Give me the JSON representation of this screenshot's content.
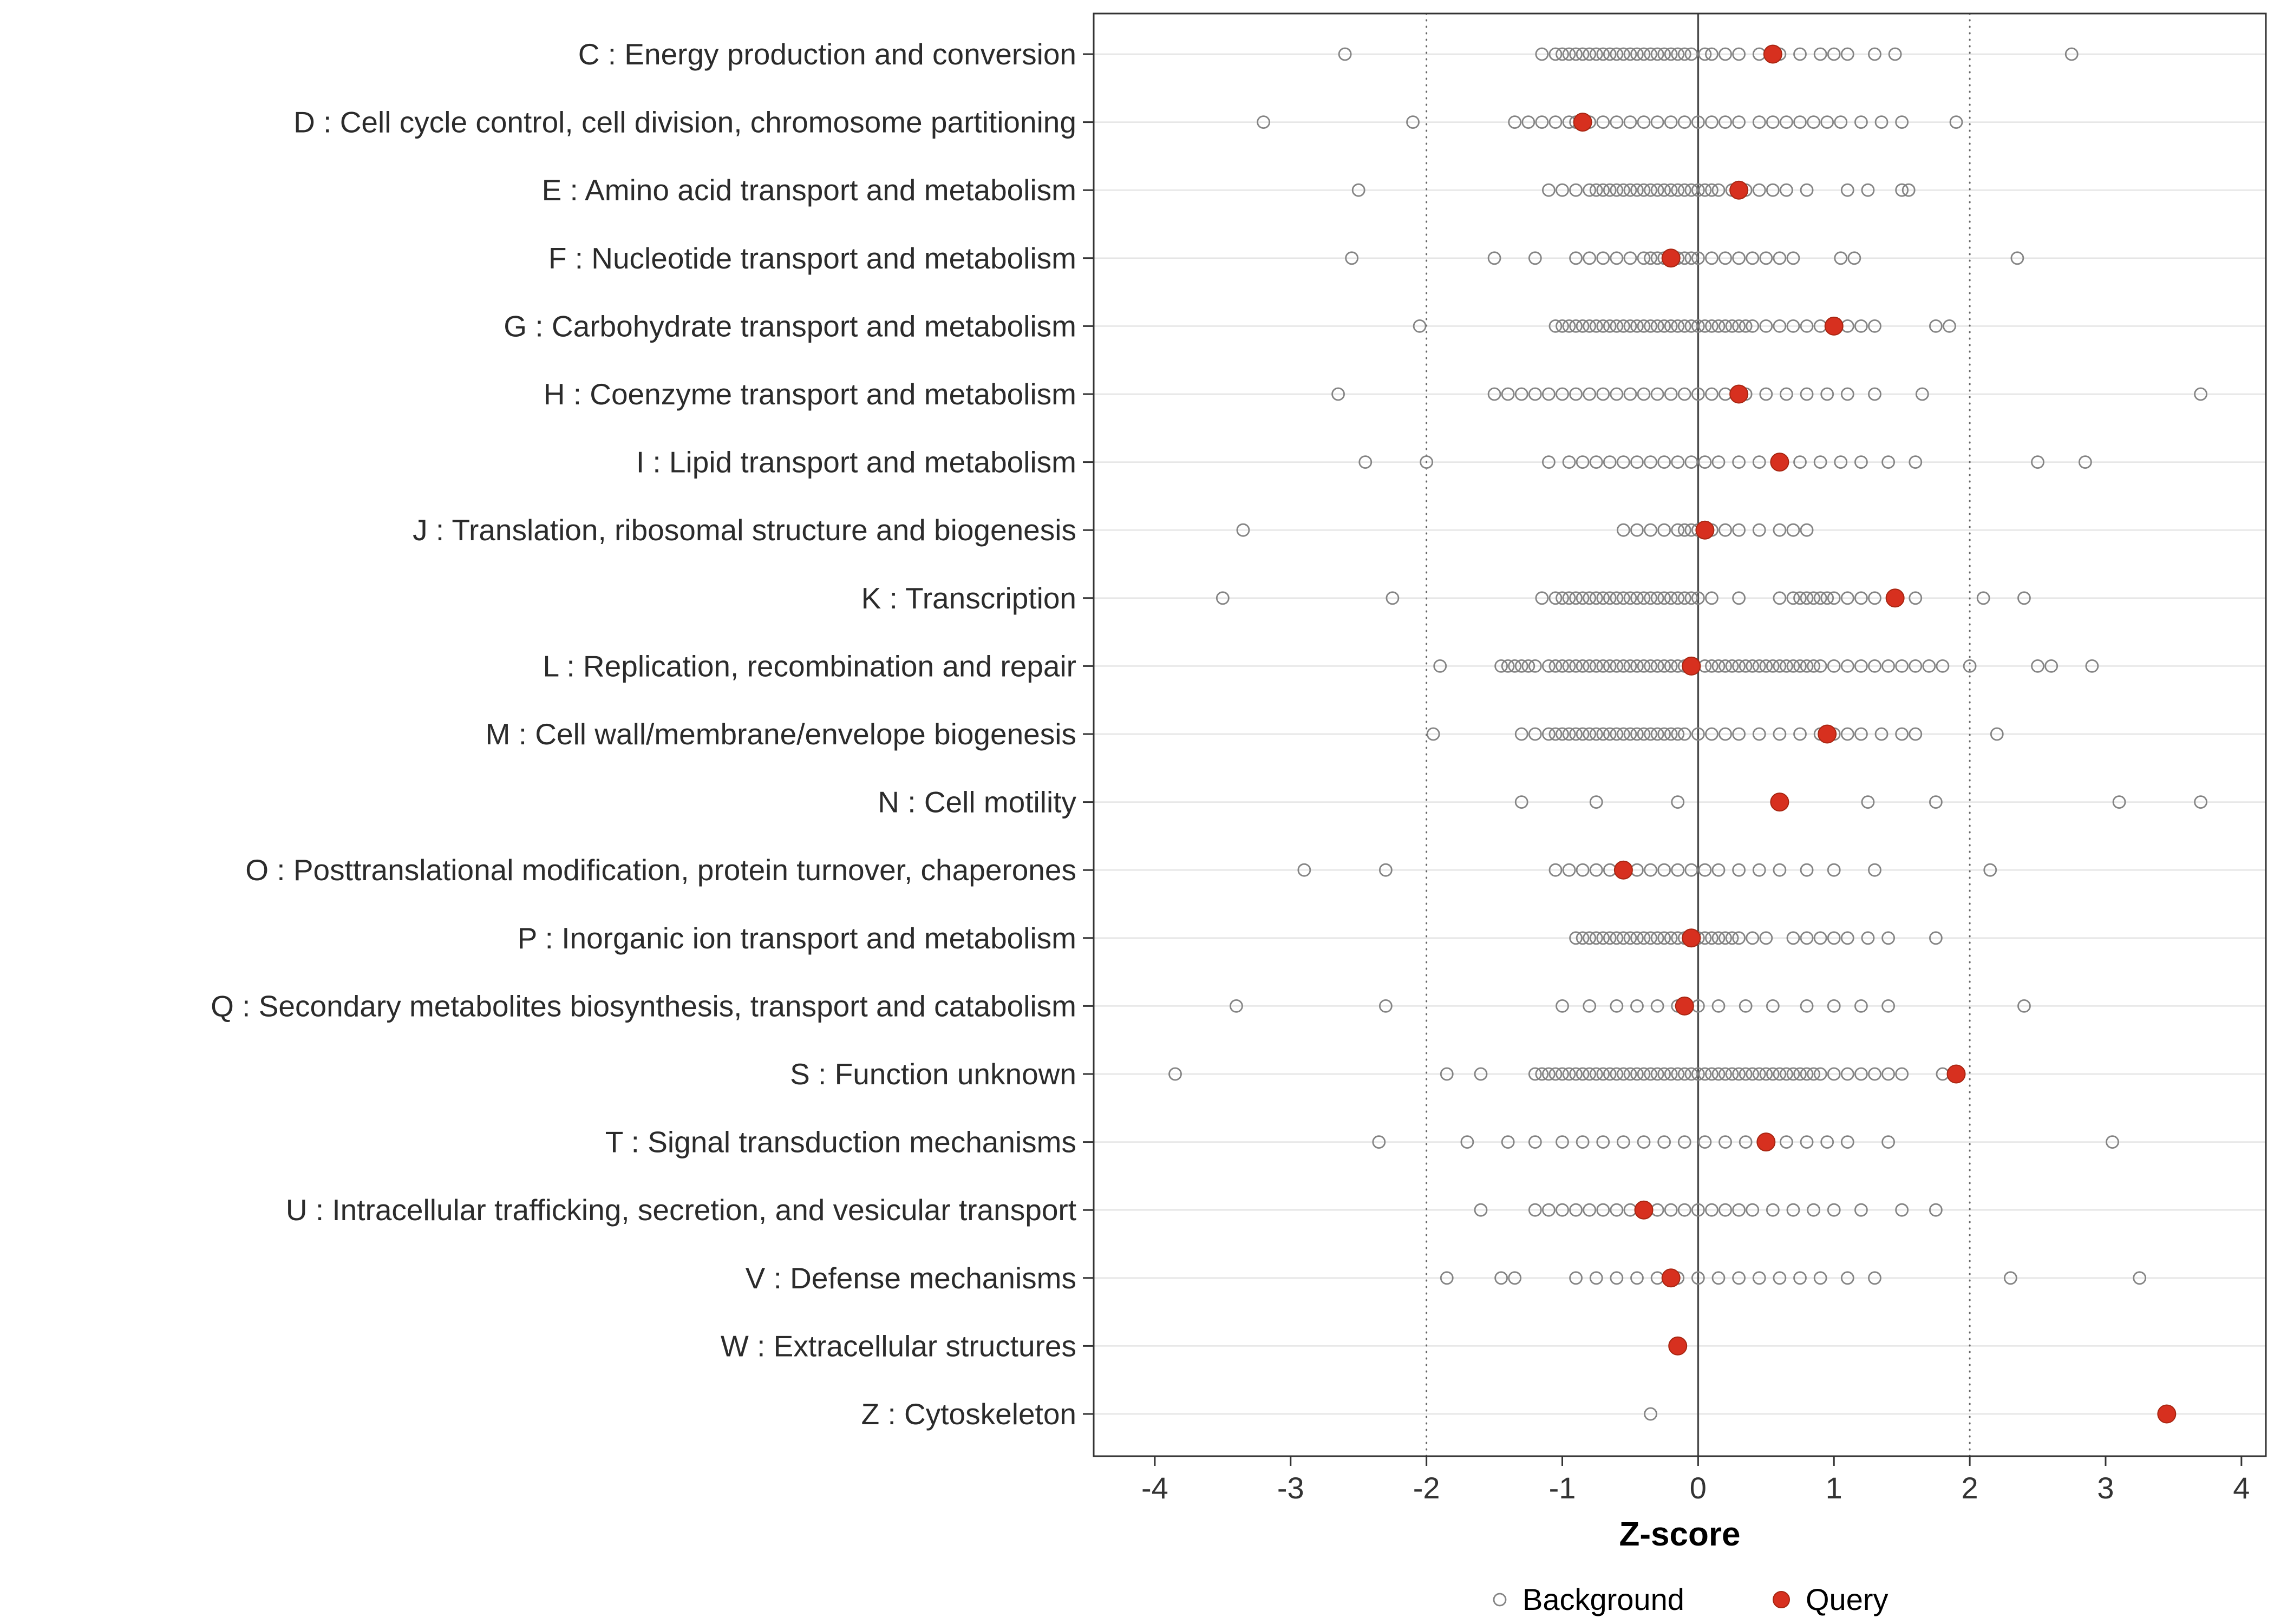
{
  "colors": {
    "query": "#D7301F",
    "query_stroke": "#A72511",
    "background_stroke": "#848484",
    "grid": "#e4e4e4",
    "zero_line": "#4d4d4d",
    "dotted_line": "#666666",
    "panel_border": "#333333",
    "axis_text": "#333333",
    "label_text": "#2b2b2b"
  },
  "legend": {
    "background_label": "Background",
    "query_label": "Query"
  },
  "chart_data": {
    "type": "scatter",
    "title": "",
    "xlabel": "Z-score",
    "ylabel": "",
    "xlim": [
      -4.45,
      4.18
    ],
    "x_ticks": [
      -4,
      -3,
      -2,
      -1,
      0,
      1,
      2,
      3,
      4
    ],
    "grid": "horizontal-only",
    "legend_position": "bottom",
    "reference_lines": {
      "solid": [
        0
      ],
      "dotted": [
        -2,
        2
      ]
    },
    "series_meaning": {
      "background": "open gray circles, one row per COG category",
      "query": "filled red circle, one per COG category"
    },
    "categories": [
      {
        "label": "C : Energy production and conversion",
        "query": 0.55,
        "background": [
          -2.6,
          -1.15,
          -1.05,
          -1.0,
          -0.95,
          -0.9,
          -0.85,
          -0.8,
          -0.75,
          -0.7,
          -0.65,
          -0.6,
          -0.55,
          -0.5,
          -0.45,
          -0.4,
          -0.35,
          -0.3,
          -0.25,
          -0.2,
          -0.15,
          -0.1,
          -0.05,
          0.05,
          0.1,
          0.2,
          0.3,
          0.45,
          0.6,
          0.75,
          0.9,
          1.0,
          1.1,
          1.3,
          1.45,
          2.75
        ]
      },
      {
        "label": "D : Cell cycle control, cell division, chromosome partitioning",
        "query": -0.85,
        "background": [
          -3.2,
          -2.1,
          -1.35,
          -1.25,
          -1.15,
          -1.05,
          -0.95,
          -0.9,
          -0.8,
          -0.7,
          -0.6,
          -0.5,
          -0.4,
          -0.3,
          -0.2,
          -0.1,
          0.0,
          0.1,
          0.2,
          0.3,
          0.45,
          0.55,
          0.65,
          0.75,
          0.85,
          0.95,
          1.05,
          1.2,
          1.35,
          1.5,
          1.9
        ]
      },
      {
        "label": "E : Amino acid transport and metabolism",
        "query": 0.3,
        "background": [
          -2.5,
          -1.1,
          -1.0,
          -0.9,
          -0.8,
          -0.75,
          -0.7,
          -0.65,
          -0.6,
          -0.55,
          -0.5,
          -0.45,
          -0.4,
          -0.35,
          -0.3,
          -0.25,
          -0.2,
          -0.15,
          -0.1,
          -0.05,
          0.0,
          0.05,
          0.1,
          0.15,
          0.25,
          0.35,
          0.45,
          0.55,
          0.65,
          0.8,
          1.1,
          1.25,
          1.5,
          1.55
        ]
      },
      {
        "label": "F : Nucleotide transport and metabolism",
        "query": -0.2,
        "background": [
          -2.55,
          -1.5,
          -1.2,
          -0.9,
          -0.8,
          -0.7,
          -0.6,
          -0.5,
          -0.4,
          -0.35,
          -0.3,
          -0.25,
          -0.2,
          -0.15,
          -0.1,
          -0.05,
          0.0,
          0.1,
          0.2,
          0.3,
          0.4,
          0.5,
          0.6,
          0.7,
          1.05,
          1.15,
          2.35
        ]
      },
      {
        "label": "G : Carbohydrate transport and metabolism",
        "query": 1.0,
        "background": [
          -2.05,
          -1.05,
          -1.0,
          -0.95,
          -0.9,
          -0.85,
          -0.8,
          -0.75,
          -0.7,
          -0.65,
          -0.6,
          -0.55,
          -0.5,
          -0.45,
          -0.4,
          -0.35,
          -0.3,
          -0.25,
          -0.2,
          -0.15,
          -0.1,
          -0.05,
          0.0,
          0.05,
          0.1,
          0.15,
          0.2,
          0.25,
          0.3,
          0.35,
          0.4,
          0.5,
          0.6,
          0.7,
          0.8,
          0.9,
          1.0,
          1.1,
          1.2,
          1.3,
          1.75,
          1.85
        ]
      },
      {
        "label": "H : Coenzyme transport and metabolism",
        "query": 0.3,
        "background": [
          -2.65,
          -1.5,
          -1.4,
          -1.3,
          -1.2,
          -1.1,
          -1.0,
          -0.9,
          -0.8,
          -0.7,
          -0.6,
          -0.5,
          -0.4,
          -0.3,
          -0.2,
          -0.1,
          0.0,
          0.1,
          0.2,
          0.35,
          0.5,
          0.65,
          0.8,
          0.95,
          1.1,
          1.3,
          1.65,
          3.7
        ]
      },
      {
        "label": "I : Lipid transport and metabolism",
        "query": 0.6,
        "background": [
          -2.45,
          -2.0,
          -1.1,
          -0.95,
          -0.85,
          -0.75,
          -0.65,
          -0.55,
          -0.45,
          -0.35,
          -0.25,
          -0.15,
          -0.05,
          0.05,
          0.15,
          0.3,
          0.45,
          0.6,
          0.75,
          0.9,
          1.05,
          1.2,
          1.4,
          1.6,
          2.5,
          2.85
        ]
      },
      {
        "label": "J : Translation, ribosomal structure and biogenesis",
        "query": 0.05,
        "background": [
          -3.35,
          -0.55,
          -0.45,
          -0.35,
          -0.25,
          -0.15,
          -0.1,
          -0.05,
          0.0,
          0.05,
          0.1,
          0.2,
          0.3,
          0.45,
          0.6,
          0.7,
          0.8
        ]
      },
      {
        "label": "K : Transcription",
        "query": 1.45,
        "background": [
          -3.5,
          -2.25,
          -1.15,
          -1.05,
          -1.0,
          -0.95,
          -0.9,
          -0.85,
          -0.8,
          -0.75,
          -0.7,
          -0.65,
          -0.6,
          -0.55,
          -0.5,
          -0.45,
          -0.4,
          -0.35,
          -0.3,
          -0.25,
          -0.2,
          -0.15,
          -0.1,
          -0.05,
          0.0,
          0.1,
          0.3,
          0.6,
          0.7,
          0.75,
          0.8,
          0.85,
          0.9,
          0.95,
          1.0,
          1.1,
          1.2,
          1.3,
          1.6,
          2.1,
          2.4
        ]
      },
      {
        "label": "L : Replication, recombination and repair",
        "query": -0.05,
        "background": [
          -1.9,
          -1.45,
          -1.4,
          -1.35,
          -1.3,
          -1.25,
          -1.2,
          -1.1,
          -1.05,
          -1.0,
          -0.95,
          -0.9,
          -0.85,
          -0.8,
          -0.75,
          -0.7,
          -0.65,
          -0.6,
          -0.55,
          -0.5,
          -0.45,
          -0.4,
          -0.35,
          -0.3,
          -0.25,
          -0.2,
          -0.15,
          -0.1,
          -0.05,
          0.05,
          0.1,
          0.15,
          0.2,
          0.25,
          0.3,
          0.35,
          0.4,
          0.45,
          0.5,
          0.55,
          0.6,
          0.65,
          0.7,
          0.75,
          0.8,
          0.85,
          0.9,
          1.0,
          1.1,
          1.2,
          1.3,
          1.4,
          1.5,
          1.6,
          1.7,
          1.8,
          2.0,
          2.5,
          2.6,
          2.9
        ]
      },
      {
        "label": "M : Cell wall/membrane/envelope biogenesis",
        "query": 0.95,
        "background": [
          -1.95,
          -1.3,
          -1.2,
          -1.1,
          -1.05,
          -1.0,
          -0.95,
          -0.9,
          -0.85,
          -0.8,
          -0.75,
          -0.7,
          -0.65,
          -0.6,
          -0.55,
          -0.5,
          -0.45,
          -0.4,
          -0.35,
          -0.3,
          -0.25,
          -0.2,
          -0.15,
          -0.1,
          0.0,
          0.1,
          0.2,
          0.3,
          0.45,
          0.6,
          0.75,
          0.9,
          1.0,
          1.1,
          1.2,
          1.35,
          1.5,
          1.6,
          2.2
        ]
      },
      {
        "label": "N : Cell motility",
        "query": 0.6,
        "background": [
          -1.3,
          -0.75,
          -0.15,
          1.25,
          1.75,
          3.1,
          3.7
        ]
      },
      {
        "label": "O : Posttranslational modification, protein turnover, chaperones",
        "query": -0.55,
        "background": [
          -2.9,
          -2.3,
          -1.05,
          -0.95,
          -0.85,
          -0.75,
          -0.65,
          -0.55,
          -0.45,
          -0.35,
          -0.25,
          -0.15,
          -0.05,
          0.05,
          0.15,
          0.3,
          0.45,
          0.6,
          0.8,
          1.0,
          1.3,
          2.15
        ]
      },
      {
        "label": "P : Inorganic ion transport and metabolism",
        "query": -0.05,
        "background": [
          -0.9,
          -0.85,
          -0.8,
          -0.75,
          -0.7,
          -0.65,
          -0.6,
          -0.55,
          -0.5,
          -0.45,
          -0.4,
          -0.35,
          -0.3,
          -0.25,
          -0.2,
          -0.15,
          -0.1,
          -0.05,
          0.0,
          0.05,
          0.1,
          0.15,
          0.2,
          0.25,
          0.3,
          0.4,
          0.5,
          0.7,
          0.8,
          0.9,
          1.0,
          1.1,
          1.25,
          1.4,
          1.75
        ]
      },
      {
        "label": "Q : Secondary metabolites biosynthesis, transport and catabolism",
        "query": -0.1,
        "background": [
          -3.4,
          -2.3,
          -1.0,
          -0.8,
          -0.6,
          -0.45,
          -0.3,
          -0.15,
          0.0,
          0.15,
          0.35,
          0.55,
          0.8,
          1.0,
          1.2,
          1.4,
          2.4
        ]
      },
      {
        "label": "S : Function unknown",
        "query": 1.9,
        "background": [
          -3.85,
          -1.85,
          -1.6,
          -1.2,
          -1.15,
          -1.1,
          -1.05,
          -1.0,
          -0.95,
          -0.9,
          -0.85,
          -0.8,
          -0.75,
          -0.7,
          -0.65,
          -0.6,
          -0.55,
          -0.5,
          -0.45,
          -0.4,
          -0.35,
          -0.3,
          -0.25,
          -0.2,
          -0.15,
          -0.1,
          -0.05,
          0.0,
          0.05,
          0.1,
          0.15,
          0.2,
          0.25,
          0.3,
          0.35,
          0.4,
          0.45,
          0.5,
          0.55,
          0.6,
          0.65,
          0.7,
          0.75,
          0.8,
          0.85,
          0.9,
          1.0,
          1.1,
          1.2,
          1.3,
          1.4,
          1.5,
          1.8
        ]
      },
      {
        "label": "T : Signal transduction mechanisms",
        "query": 0.5,
        "background": [
          -2.35,
          -1.7,
          -1.4,
          -1.2,
          -1.0,
          -0.85,
          -0.7,
          -0.55,
          -0.4,
          -0.25,
          -0.1,
          0.05,
          0.2,
          0.35,
          0.5,
          0.65,
          0.8,
          0.95,
          1.1,
          1.4,
          3.05
        ]
      },
      {
        "label": "U : Intracellular trafficking, secretion, and vesicular transport",
        "query": -0.4,
        "background": [
          -1.6,
          -1.2,
          -1.1,
          -1.0,
          -0.9,
          -0.8,
          -0.7,
          -0.6,
          -0.5,
          -0.4,
          -0.3,
          -0.2,
          -0.1,
          0.0,
          0.1,
          0.2,
          0.3,
          0.4,
          0.55,
          0.7,
          0.85,
          1.0,
          1.2,
          1.5,
          1.75
        ]
      },
      {
        "label": "V : Defense mechanisms",
        "query": -0.2,
        "background": [
          -1.85,
          -1.45,
          -1.35,
          -0.9,
          -0.75,
          -0.6,
          -0.45,
          -0.3,
          -0.15,
          0.0,
          0.15,
          0.3,
          0.45,
          0.6,
          0.75,
          0.9,
          1.1,
          1.3,
          2.3,
          3.25
        ]
      },
      {
        "label": "W : Extracellular structures",
        "query": -0.15,
        "background": []
      },
      {
        "label": "Z : Cytoskeleton",
        "query": 3.45,
        "background": [
          -0.35
        ]
      }
    ]
  }
}
